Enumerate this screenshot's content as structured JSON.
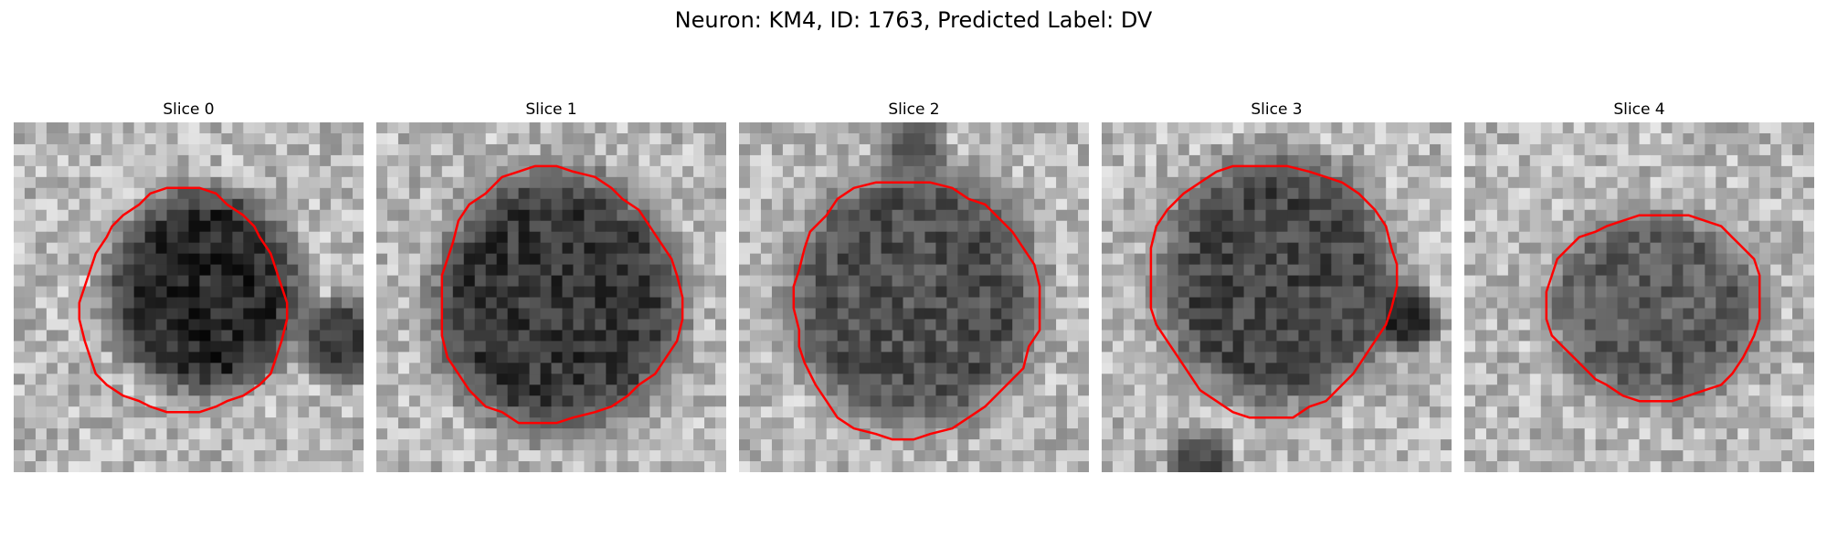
{
  "title": "Neuron: KM4, ID: 1763, Predicted Label: DV",
  "outline_color": "#ff0000",
  "panels": [
    {
      "label": "Slice 0"
    },
    {
      "label": "Slice 1"
    },
    {
      "label": "Slice 2"
    },
    {
      "label": "Slice 3"
    },
    {
      "label": "Slice 4"
    }
  ]
}
